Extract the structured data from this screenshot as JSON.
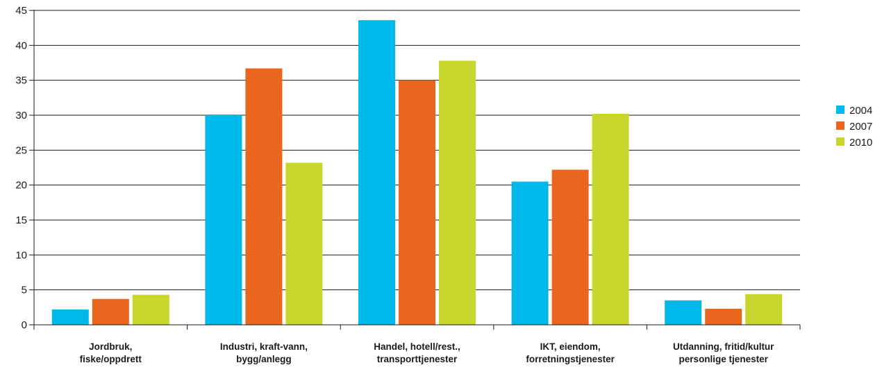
{
  "chart_data": {
    "type": "bar",
    "categories": [
      [
        "Jordbruk,",
        "fiske/oppdrett"
      ],
      [
        "Industri, kraft-vann,",
        "bygg/anlegg"
      ],
      [
        "Handel, hotell/rest.,",
        "transporttjenester"
      ],
      [
        "IKT, eiendom,",
        "forretningstjenester"
      ],
      [
        "Utdanning, fritid/kultur",
        "personlige tjenester"
      ]
    ],
    "series": [
      {
        "name": "2004",
        "color": "#00b9eb",
        "values": [
          2.2,
          30.0,
          43.6,
          20.5,
          3.5
        ]
      },
      {
        "name": "2007",
        "color": "#ea661e",
        "values": [
          3.7,
          36.7,
          35.0,
          22.2,
          2.3
        ]
      },
      {
        "name": "2010",
        "color": "#c8d62d",
        "values": [
          4.3,
          23.2,
          37.8,
          30.2,
          4.4
        ]
      }
    ],
    "y_ticks": [
      "0",
      "5",
      "10",
      "15",
      "20",
      "25",
      "30",
      "35",
      "40",
      "45"
    ],
    "ylim": [
      0,
      45
    ],
    "grid": true,
    "legend_position": "right"
  }
}
